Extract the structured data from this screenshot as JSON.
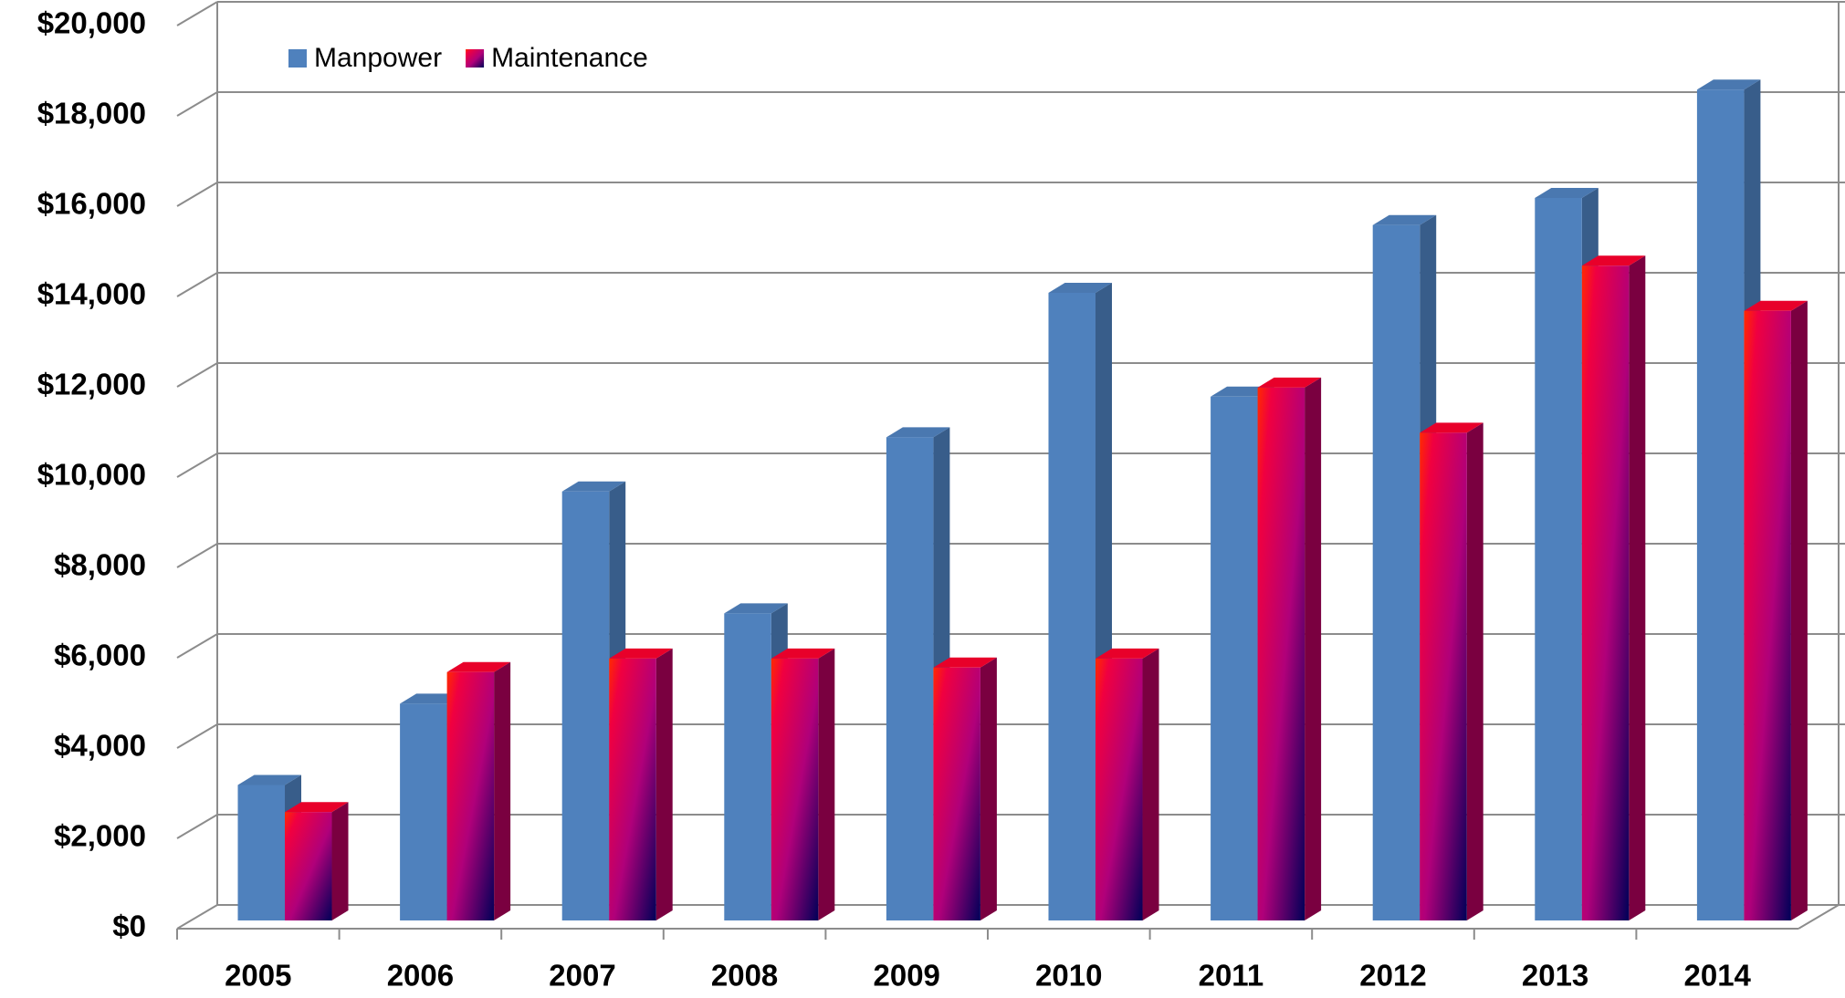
{
  "chart_data": {
    "type": "bar",
    "categories": [
      "2005",
      "2006",
      "2007",
      "2008",
      "2009",
      "2010",
      "2011",
      "2012",
      "2013",
      "2014"
    ],
    "series": [
      {
        "name": "Manpower",
        "color": "#4f81bd",
        "values": [
          3000,
          4800,
          9500,
          6800,
          10700,
          13900,
          11600,
          15400,
          16000,
          18400
        ]
      },
      {
        "name": "Maintenance",
        "color": "#e0005a",
        "values": [
          2400,
          5500,
          5800,
          5800,
          5600,
          5800,
          11800,
          10800,
          14500,
          13500
        ]
      }
    ],
    "ylim": [
      0,
      20000
    ],
    "yticks": [
      {
        "value": 0,
        "label": "$0"
      },
      {
        "value": 2000,
        "label": "$2,000"
      },
      {
        "value": 4000,
        "label": "$4,000"
      },
      {
        "value": 6000,
        "label": "$6,000"
      },
      {
        "value": 8000,
        "label": "$8,000"
      },
      {
        "value": 10000,
        "label": "$10,000"
      },
      {
        "value": 12000,
        "label": "$12,000"
      },
      {
        "value": 14000,
        "label": "$14,000"
      },
      {
        "value": 16000,
        "label": "$16,000"
      },
      {
        "value": 18000,
        "label": "$18,000"
      },
      {
        "value": 20000,
        "label": "$20,000"
      }
    ],
    "grid": true
  }
}
